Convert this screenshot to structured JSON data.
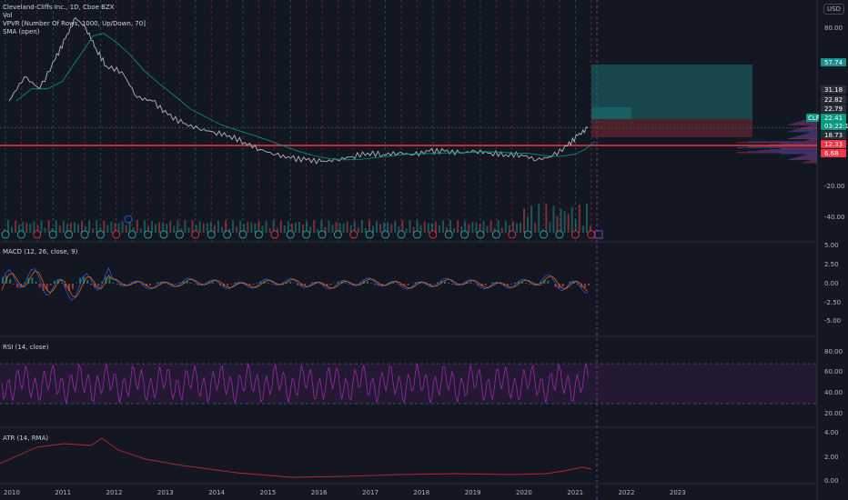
{
  "header": {
    "title": "Cleveland-Cliffs Inc., 1D, Cboe BZX",
    "indicators": [
      "Vol",
      "VPVR [Number Of Rows, 1000, Up/Down, 70]",
      "SMA (open)"
    ],
    "currency": "USD"
  },
  "colors": {
    "background": "#131722",
    "grid": "#1e222d",
    "price_line": "#b2b5be",
    "support_line": "#f23645",
    "sma": "#089981",
    "macd": "#2962ff",
    "signal": "#ff6d00",
    "rsi": "#9c27b0",
    "atr": "#b22833",
    "cyan_divider": "#2ab5c4",
    "red_divider": "#f23645",
    "magenta_divider": "#a64ad4"
  },
  "panes": {
    "price": {
      "axis_labels": [
        "80.00",
        "-20.00",
        "-40.00"
      ],
      "price_tags": [
        {
          "text": "57.74",
          "color": "#1b8e8e"
        },
        {
          "text": "31.18",
          "color": "#2a2e39"
        },
        {
          "text": "22.82",
          "color": "#2a2e39"
        },
        {
          "text": "22.79",
          "color": "#2a2e39"
        },
        {
          "text": "22.41",
          "color": "#089981"
        },
        {
          "text": "03:22:12",
          "color": "#089981"
        },
        {
          "text": "18.73",
          "color": "#2a2e39"
        },
        {
          "text": "12.33",
          "color": "#f23645"
        },
        {
          "text": "6.68",
          "color": "#f23645"
        }
      ],
      "symbol_tag": "CLF"
    },
    "macd": {
      "title": "MACD (12, 26, close, 9)",
      "axis_labels": [
        "5.00",
        "2.50",
        "0.00",
        "-2.50",
        "-5.00"
      ]
    },
    "rsi": {
      "title": "RSI (14, close)",
      "axis_labels": [
        "80.00",
        "60.00",
        "40.00",
        "20.00"
      ]
    },
    "atr": {
      "title": "ATR (14, RMA)",
      "axis_labels": [
        "4.00",
        "2.00",
        "0.00"
      ]
    }
  },
  "chart_data": {
    "type": "line",
    "x_ticks": [
      "2010",
      "2011",
      "2012",
      "2013",
      "2014",
      "2015",
      "2016",
      "2017",
      "2018",
      "2019",
      "2020",
      "2021",
      "2022",
      "2023"
    ],
    "price_series": {
      "x": [
        2010.0,
        2010.3,
        2010.6,
        2010.9,
        2011.1,
        2011.3,
        2011.5,
        2011.7,
        2011.9,
        2012.2,
        2012.5,
        2012.8,
        2013.1,
        2013.4,
        2013.7,
        2014.0,
        2014.3,
        2014.6,
        2014.9,
        2015.2,
        2015.5,
        2015.8,
        2016.1,
        2016.4,
        2016.7,
        2017.0,
        2017.3,
        2017.6,
        2017.9,
        2018.2,
        2018.5,
        2018.8,
        2019.1,
        2019.4,
        2019.7,
        2020.0,
        2020.3,
        2020.6,
        2020.9,
        2021.1,
        2021.3
      ],
      "y": [
        38,
        52,
        45,
        62,
        74,
        86,
        80,
        68,
        58,
        55,
        40,
        38,
        30,
        25,
        22,
        20,
        18,
        14,
        10,
        7,
        5,
        4,
        3,
        4,
        6,
        8,
        7,
        8,
        7,
        9,
        9,
        8,
        9,
        8,
        7,
        7,
        4,
        6,
        12,
        18,
        22.4
      ]
    },
    "levels": {
      "support": 12.33,
      "last": 22.41
    }
  }
}
